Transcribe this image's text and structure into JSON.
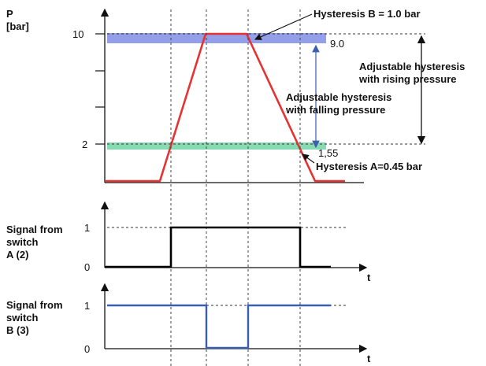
{
  "top_plot": {
    "y_label": [
      "P",
      "[bar]"
    ],
    "y_ticks": [
      "10",
      "2"
    ],
    "band_colors": {
      "upper": "#6f7fe0",
      "lower": "#5fcf9a"
    },
    "pressure_line_color": "#e63232",
    "hyst_b_label": "Hysteresis B = 1.0 bar",
    "hyst_a_label": "Hysteresis A=0.45 bar",
    "value_upper": "9.0",
    "value_lower": "1,55",
    "falling_label": [
      "Adjustable hysteresis",
      "with falling pressure"
    ],
    "rising_label": [
      "Adjustable hysteresis",
      "with rising pressure"
    ]
  },
  "signal_a": {
    "label": [
      "Signal from",
      "switch",
      "A (2)"
    ],
    "ticks": [
      "1",
      "0"
    ],
    "axis_label": "t",
    "line_color": "#000000"
  },
  "signal_b": {
    "label": [
      "Signal from",
      "switch",
      "B (3)"
    ],
    "ticks": [
      "1",
      "0"
    ],
    "axis_label": "t",
    "line_color": "#3a5fb0"
  }
}
